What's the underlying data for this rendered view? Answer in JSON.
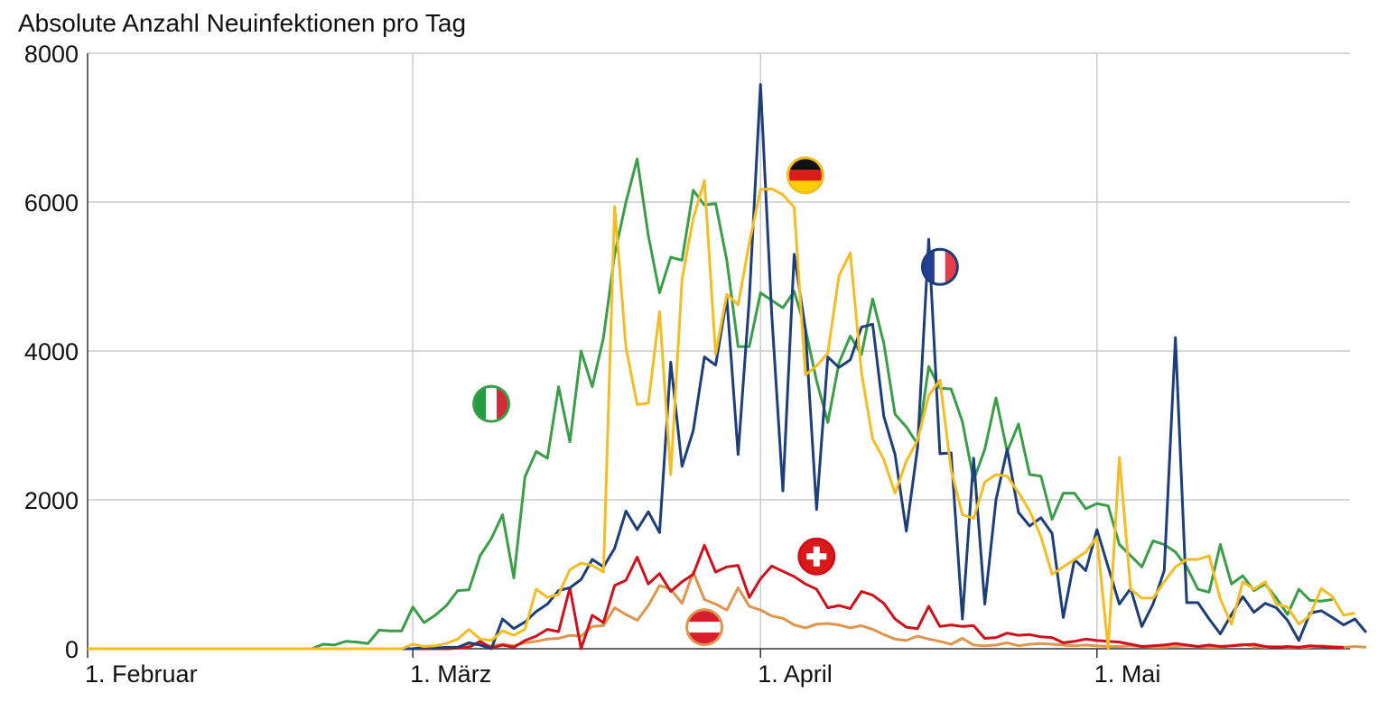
{
  "chart_data": {
    "type": "line",
    "title": "Absolute Anzahl Neuinfektionen pro Tag",
    "xlabel": "",
    "ylabel": "",
    "ylim": [
      0,
      8000
    ],
    "yticks": [
      0,
      2000,
      4000,
      6000,
      8000
    ],
    "ytick_labels": [
      "0",
      "2000",
      "4000",
      "6000",
      "8000"
    ],
    "x_start": "2020-02-01",
    "x_end": "2020-05-21",
    "xticks": [
      {
        "day": 0,
        "label": "1. Februar"
      },
      {
        "day": 29,
        "label": "1. März"
      },
      {
        "day": 60,
        "label": "1. April"
      },
      {
        "day": 90,
        "label": "1. Mai"
      }
    ],
    "grid": true,
    "legend": "country flag markers placed on the curves",
    "series": [
      {
        "country": "italy",
        "flag_icon": "italy-flag-icon",
        "color": "#3a9e48",
        "values": [
          0,
          0,
          0,
          0,
          0,
          0,
          0,
          0,
          0,
          0,
          0,
          0,
          0,
          0,
          0,
          0,
          0,
          0,
          0,
          0,
          0,
          60,
          50,
          100,
          90,
          70,
          250,
          240,
          240,
          560,
          350,
          450,
          580,
          780,
          790,
          1250,
          1480,
          1800,
          950,
          2310,
          2650,
          2560,
          3520,
          2780,
          4000,
          3520,
          4180,
          5300,
          6000,
          6580,
          5550,
          4780,
          5260,
          5220,
          6160,
          5960,
          5980,
          5220,
          4060,
          4060,
          4780,
          4680,
          4580,
          4800,
          4300,
          3600,
          3040,
          3840,
          4200,
          3950,
          4700,
          4100,
          3150,
          2980,
          2750,
          3790,
          3500,
          3490,
          3050,
          2260,
          2680,
          3370,
          2650,
          3020,
          2340,
          2320,
          1740,
          2090,
          2090,
          1880,
          1950,
          1920,
          1400,
          1250,
          1100,
          1450,
          1400,
          1300,
          1100,
          800,
          760,
          1400,
          870,
          980,
          780,
          870,
          680,
          460,
          800,
          650,
          640,
          660
        ]
      },
      {
        "country": "germany",
        "flag_icon": "germany-flag-icon",
        "color": "#f5bd22",
        "values": [
          0,
          0,
          0,
          0,
          0,
          0,
          0,
          0,
          0,
          0,
          0,
          0,
          0,
          0,
          0,
          0,
          0,
          0,
          0,
          0,
          0,
          0,
          0,
          0,
          0,
          0,
          0,
          0,
          0,
          60,
          30,
          40,
          70,
          130,
          260,
          130,
          110,
          240,
          180,
          260,
          800,
          690,
          730,
          1060,
          1150,
          1120,
          1030,
          5940,
          4050,
          3280,
          3300,
          4530,
          2340,
          4960,
          5780,
          6290,
          3960,
          4760,
          4620,
          5450,
          6170,
          6180,
          6100,
          5930,
          3680,
          3800,
          3970,
          5010,
          5320,
          3710,
          2820,
          2540,
          2090,
          2520,
          2800,
          3400,
          3610,
          2400,
          1800,
          1750,
          2240,
          2340,
          2320,
          2100,
          1850,
          1510,
          1000,
          1100,
          1200,
          1300,
          1500,
          0,
          2570,
          800,
          680,
          680,
          900,
          1100,
          1200,
          1200,
          1250,
          670,
          330,
          900,
          800,
          900,
          600,
          560,
          330,
          450,
          810,
          700,
          450,
          480
        ]
      },
      {
        "country": "france",
        "flag_icon": "france-flag-icon",
        "color": "#1c3e7b",
        "values": [
          0,
          0,
          0,
          0,
          0,
          0,
          0,
          0,
          0,
          0,
          0,
          0,
          0,
          0,
          0,
          0,
          0,
          0,
          0,
          0,
          0,
          0,
          0,
          0,
          0,
          0,
          0,
          0,
          0,
          0,
          20,
          10,
          20,
          20,
          80,
          50,
          0,
          400,
          270,
          360,
          500,
          600,
          780,
          820,
          930,
          1200,
          1100,
          1350,
          1850,
          1600,
          1840,
          1560,
          3850,
          2450,
          2930,
          3920,
          3810,
          4710,
          2610,
          4700,
          7580,
          4500,
          2120,
          5300,
          4300,
          1870,
          3920,
          3780,
          3880,
          4320,
          4360,
          3120,
          2610,
          1580,
          2700,
          5500,
          2620,
          2630,
          400,
          2560,
          600,
          2000,
          2680,
          1830,
          1650,
          1760,
          1550,
          420,
          1200,
          1050,
          1600,
          1100,
          600,
          810,
          300,
          600,
          1050,
          4180,
          620,
          620,
          400,
          200,
          460,
          700,
          490,
          610,
          550,
          380,
          110,
          480,
          510,
          420,
          320,
          400,
          220
        ]
      },
      {
        "country": "switzerland",
        "flag_icon": "switzerland-flag-icon",
        "color": "#d0101a",
        "values": [
          0,
          0,
          0,
          0,
          0,
          0,
          0,
          0,
          0,
          0,
          0,
          0,
          0,
          0,
          0,
          0,
          0,
          0,
          0,
          0,
          0,
          0,
          0,
          0,
          0,
          0,
          0,
          0,
          0,
          0,
          0,
          0,
          0,
          10,
          20,
          100,
          10,
          50,
          20,
          110,
          170,
          260,
          230,
          820,
          0,
          450,
          350,
          850,
          920,
          1230,
          870,
          1010,
          770,
          900,
          1000,
          1390,
          1030,
          1100,
          1120,
          690,
          940,
          1110,
          1040,
          970,
          870,
          800,
          550,
          580,
          540,
          770,
          720,
          610,
          400,
          290,
          270,
          570,
          300,
          320,
          300,
          310,
          140,
          150,
          210,
          180,
          190,
          160,
          150,
          80,
          100,
          130,
          110,
          100,
          90,
          60,
          30,
          40,
          50,
          70,
          50,
          30,
          50,
          30,
          40,
          50,
          60,
          30,
          20,
          30,
          20,
          40,
          30,
          20,
          20
        ]
      },
      {
        "country": "austria",
        "flag_icon": "austria-flag-icon",
        "color": "#e0944c",
        "values": [
          0,
          0,
          0,
          0,
          0,
          0,
          0,
          0,
          0,
          0,
          0,
          0,
          0,
          0,
          0,
          0,
          0,
          0,
          0,
          0,
          0,
          0,
          0,
          0,
          0,
          0,
          0,
          0,
          0,
          0,
          0,
          0,
          0,
          10,
          50,
          60,
          40,
          60,
          40,
          80,
          100,
          130,
          140,
          180,
          170,
          300,
          310,
          550,
          460,
          380,
          580,
          850,
          800,
          610,
          1030,
          660,
          600,
          520,
          820,
          570,
          520,
          440,
          410,
          320,
          280,
          330,
          340,
          320,
          280,
          310,
          260,
          190,
          130,
          110,
          170,
          130,
          100,
          60,
          140,
          50,
          40,
          50,
          80,
          40,
          60,
          70,
          60,
          50,
          40,
          50,
          40,
          30,
          30,
          40,
          30,
          20,
          20,
          30,
          40,
          30,
          20,
          20,
          40,
          60,
          30,
          20,
          30,
          20,
          20,
          20,
          40,
          30,
          20,
          30,
          20
        ]
      }
    ],
    "markers": [
      {
        "country": "italy",
        "flag_icon": "italy-flag-icon",
        "day": 36,
        "value": 3290
      },
      {
        "country": "germany",
        "flag_icon": "germany-flag-icon",
        "day": 64,
        "value": 6360
      },
      {
        "country": "france",
        "flag_icon": "france-flag-icon",
        "day": 76,
        "value": 5130
      },
      {
        "country": "switzerland",
        "flag_icon": "switzerland-flag-icon",
        "day": 65,
        "value": 1240
      },
      {
        "country": "austria",
        "flag_icon": "austria-flag-icon",
        "day": 55,
        "value": 290
      }
    ]
  }
}
